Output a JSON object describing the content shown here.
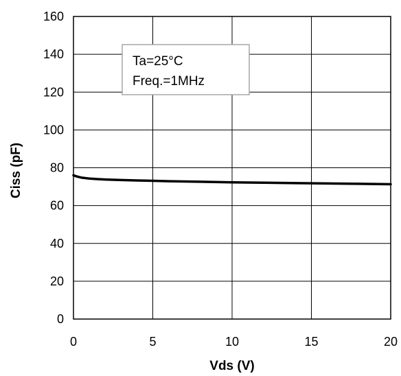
{
  "chart_data": {
    "type": "line",
    "title": "",
    "xlabel": "Vds (V)",
    "ylabel": "Ciss (pF)",
    "xlim": [
      0,
      20
    ],
    "ylim": [
      0,
      160
    ],
    "xticks": [
      0,
      5,
      10,
      15,
      20
    ],
    "yticks": [
      0,
      20,
      40,
      60,
      80,
      100,
      120,
      140,
      160
    ],
    "grid": true,
    "annotations": [
      "Ta=25°C",
      "Freq.=1MHz"
    ],
    "series": [
      {
        "color": "#000000",
        "x": [
          0,
          0.25,
          0.5,
          1,
          1.5,
          2,
          3,
          4,
          5,
          6,
          8,
          10,
          12,
          14,
          16,
          18,
          20
        ],
        "y": [
          76,
          75.3,
          74.8,
          74.3,
          74.0,
          73.8,
          73.5,
          73.3,
          73.1,
          72.9,
          72.6,
          72.3,
          72.1,
          71.9,
          71.7,
          71.5,
          71.3
        ]
      }
    ]
  }
}
